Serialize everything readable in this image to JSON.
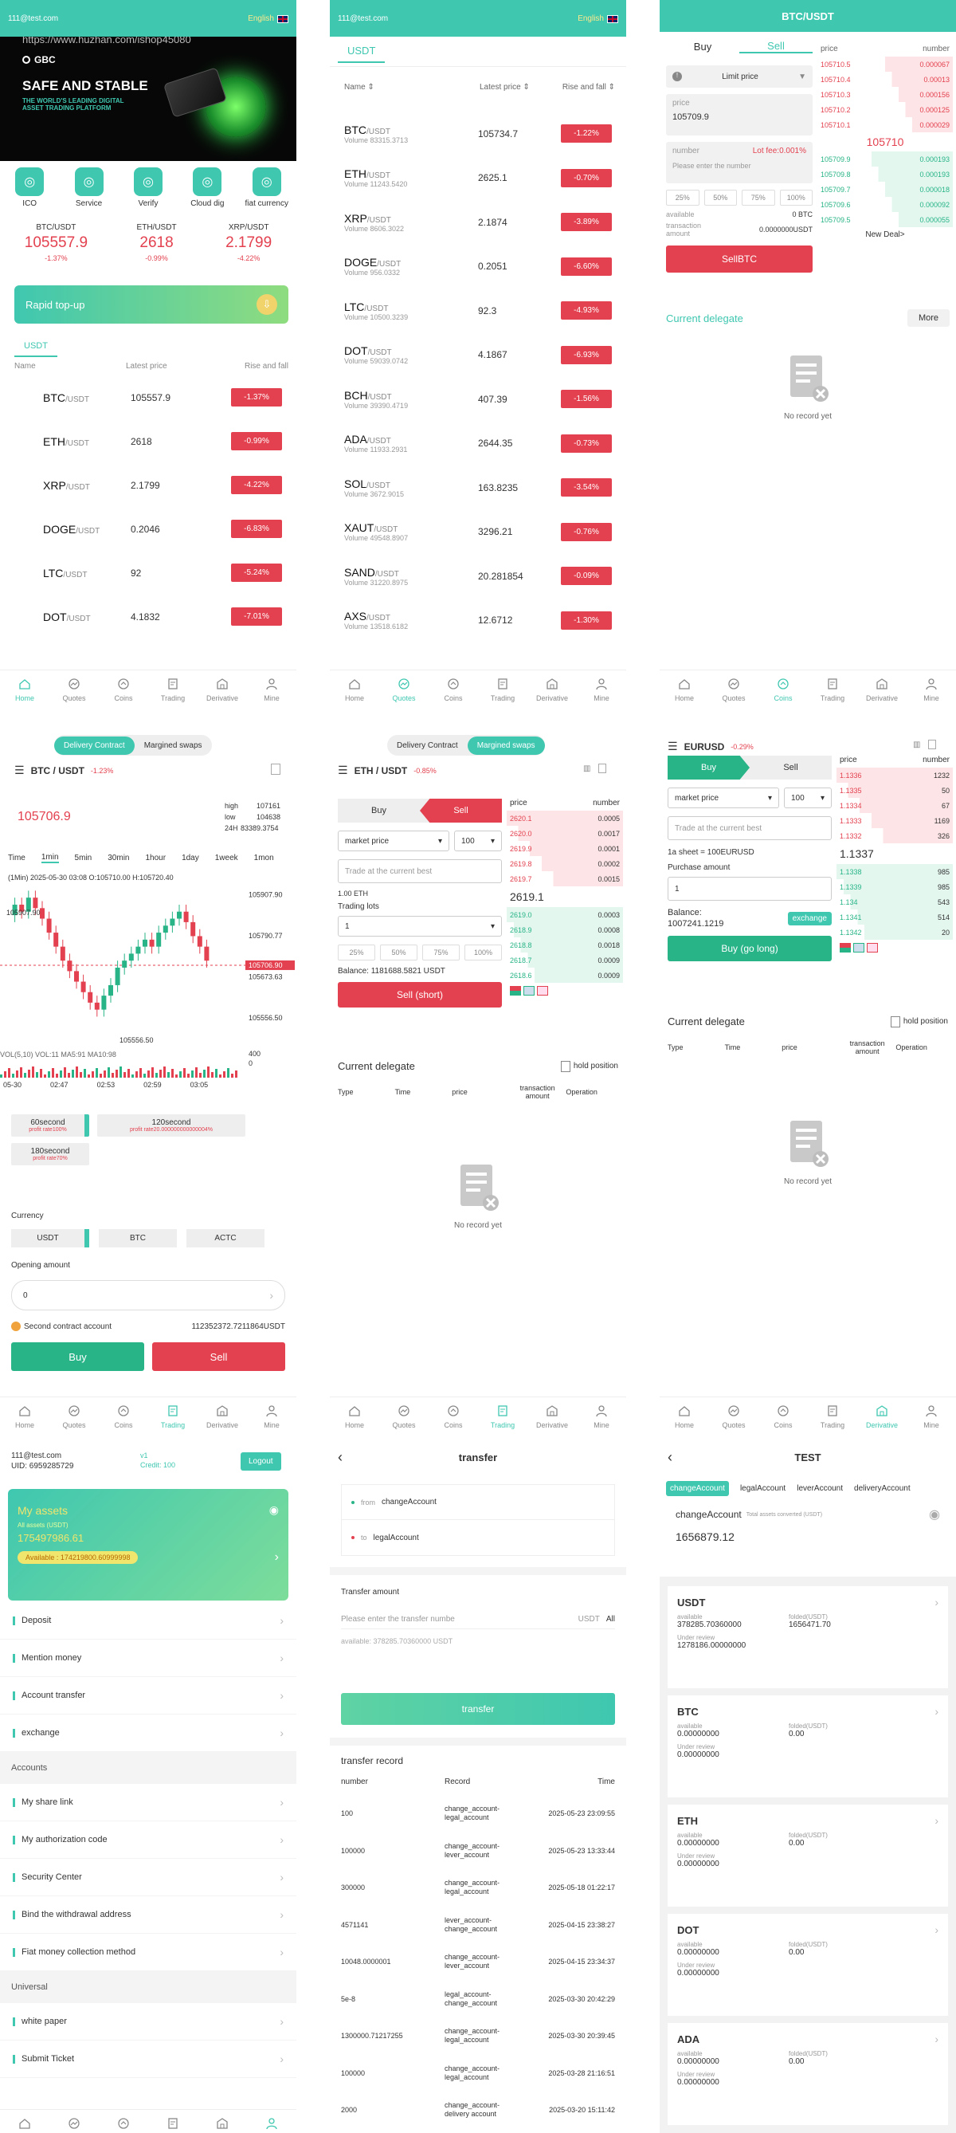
{
  "tabbar": [
    "Home",
    "Quotes",
    "Coins",
    "Trading",
    "Derivative",
    "Mine"
  ],
  "home": {
    "email": "111@test.com",
    "lang": "English",
    "banner_url": "https://www.huzhan.com/ishop45080",
    "banner_logo": "GBC",
    "banner_title": "SAFE AND STABLE",
    "banner_sub": "THE WORLD'S LEADING DIGITAL ASSET TRADING PLATFORM",
    "icons": [
      "ICO",
      "Service",
      "Verify",
      "Cloud dig",
      "fiat currency"
    ],
    "tickers": [
      {
        "pair": "BTC/USDT",
        "price": "105557.9",
        "chg": "-1.37%"
      },
      {
        "pair": "ETH/USDT",
        "price": "2618",
        "chg": "-0.99%"
      },
      {
        "pair": "XRP/USDT",
        "price": "2.1799",
        "chg": "-4.22%"
      }
    ],
    "topup": "Rapid top-up",
    "tab": "USDT",
    "cols": [
      "Name",
      "Latest price",
      "Rise and fall"
    ],
    "rows": [
      {
        "c": "BTC",
        "q": "/USDT",
        "p": "105557.9",
        "r": "-1.37%"
      },
      {
        "c": "ETH",
        "q": "/USDT",
        "p": "2618",
        "r": "-0.99%"
      },
      {
        "c": "XRP",
        "q": "/USDT",
        "p": "2.1799",
        "r": "-4.22%"
      },
      {
        "c": "DOGE",
        "q": "/USDT",
        "p": "0.2046",
        "r": "-6.83%"
      },
      {
        "c": "LTC",
        "q": "/USDT",
        "p": "92",
        "r": "-5.24%"
      },
      {
        "c": "DOT",
        "q": "/USDT",
        "p": "4.1832",
        "r": "-7.01%"
      }
    ]
  },
  "quotes": {
    "email": "111@test.com",
    "lang": "English",
    "tab": "USDT",
    "cols": [
      "Name ⇕",
      "Latest price ⇕",
      "Rise and fall ⇕"
    ],
    "rows": [
      {
        "c": "BTC",
        "q": "/USDT",
        "v": "Volume 83315.3713",
        "p": "105734.7",
        "r": "-1.22%"
      },
      {
        "c": "ETH",
        "q": "/USDT",
        "v": "Volume 11243.5420",
        "p": "2625.1",
        "r": "-0.70%"
      },
      {
        "c": "XRP",
        "q": "/USDT",
        "v": "Volume 8606.3022",
        "p": "2.1874",
        "r": "-3.89%"
      },
      {
        "c": "DOGE",
        "q": "/USDT",
        "v": "Volume 956.0332",
        "p": "0.2051",
        "r": "-6.60%"
      },
      {
        "c": "LTC",
        "q": "/USDT",
        "v": "Volume 10500.3239",
        "p": "92.3",
        "r": "-4.93%"
      },
      {
        "c": "DOT",
        "q": "/USDT",
        "v": "Volume 59039.0742",
        "p": "4.1867",
        "r": "-6.93%"
      },
      {
        "c": "BCH",
        "q": "/USDT",
        "v": "Volume 39390.4719",
        "p": "407.39",
        "r": "-1.56%"
      },
      {
        "c": "ADA",
        "q": "/USDT",
        "v": "Volume 11933.2931",
        "p": "2644.35",
        "r": "-0.73%"
      },
      {
        "c": "SOL",
        "q": "/USDT",
        "v": "Volume 3672.9015",
        "p": "163.8235",
        "r": "-3.54%"
      },
      {
        "c": "XAUT",
        "q": "/USDT",
        "v": "Volume 49548.8907",
        "p": "3296.21",
        "r": "-0.76%"
      },
      {
        "c": "SAND",
        "q": "/USDT",
        "v": "Volume 31220.8975",
        "p": "20.281854",
        "r": "-0.09%"
      },
      {
        "c": "AXS",
        "q": "/USDT",
        "v": "Volume 13518.6182",
        "p": "12.6712",
        "r": "-1.30%"
      }
    ]
  },
  "spot": {
    "title": "BTC/USDT",
    "buy": "Buy",
    "sell": "Sell",
    "order_type": "Limit price",
    "price_label": "price",
    "price_val": "105709.9",
    "number_label": "number",
    "fee": "Lot fee:0.001%",
    "number_ph": "Please enter the number",
    "pcts": [
      "25%",
      "50%",
      "75%",
      "100%"
    ],
    "available": "available",
    "available_val": "0 BTC",
    "ta": "transaction amount",
    "ta_val": "0.0000000USDT",
    "submit": "SellBTC",
    "ob_head": [
      "price",
      "number"
    ],
    "asks": [
      [
        "105710.5",
        "0.000067"
      ],
      [
        "105710.4",
        "0.00013"
      ],
      [
        "105710.3",
        "0.000156"
      ],
      [
        "105710.2",
        "0.000125"
      ],
      [
        "105710.1",
        "0.000029"
      ]
    ],
    "mid": "105710",
    "bids": [
      [
        "105709.9",
        "0.000193"
      ],
      [
        "105709.8",
        "0.000193"
      ],
      [
        "105709.7",
        "0.000018"
      ],
      [
        "105709.6",
        "0.000092"
      ],
      [
        "105709.5",
        "0.000055"
      ]
    ],
    "newdeal": "New Deal>",
    "delegate": "Current delegate",
    "more": "More",
    "empty": "No record yet"
  },
  "contract": {
    "tabs": [
      "Delivery Contract",
      "Margined swaps"
    ],
    "pair": "BTC / USDT",
    "chg": "-1.23%",
    "price": "105706.9",
    "high_l": "high",
    "high": "107161",
    "low_l": "low",
    "low": "104638",
    "h24_l": "24H",
    "h24": "83389.3754",
    "tfs": [
      "Time",
      "1min",
      "5min",
      "30min",
      "1hour",
      "1day",
      "1week",
      "1mon"
    ],
    "ohlc": "(1Min)  2025-05-30  03:08  O:105710.00  H:105720.40",
    "chart_hi": "105907.90",
    "chart_lo": "105556.50",
    "yticks": [
      "105907.90",
      "105790.77",
      "105706.90",
      "105673.63",
      "105556.50"
    ],
    "vol_line": "VOL(5,10)  VOL:11  MA5:91  MA10:98",
    "vol_ticks": [
      "400",
      "0"
    ],
    "xticks": [
      "05-30",
      "02:47",
      "02:53",
      "02:59",
      "03:05"
    ],
    "periods": [
      {
        "t": "60second",
        "s": "profit rate100%"
      },
      {
        "t": "120second",
        "s": "profit rate20.000000000000004%"
      },
      {
        "t": "180second",
        "s": "profit rate70%"
      }
    ],
    "currency": "Currency",
    "cur": [
      "USDT",
      "BTC",
      "ACTC"
    ],
    "open_amt": "Opening amount",
    "open_val": "0",
    "acct": "Second contract account",
    "acct_val": "112352372.7211864USDT",
    "buy": "Buy",
    "sell": "Sell"
  },
  "margin": {
    "tabs": [
      "Delivery Contract",
      "Margined swaps"
    ],
    "pair": "ETH / USDT",
    "chg": "-0.85%",
    "buy": "Buy",
    "sell": "Sell",
    "type": "market price",
    "lev": "100",
    "best": "Trade at the current best",
    "unit": "1.00 ETH",
    "lots": "Trading lots",
    "lots_val": "1",
    "pcts": [
      "25%",
      "50%",
      "75%",
      "100%"
    ],
    "balance": "Balance: 1181688.5821 USDT",
    "submit": "Sell (short)",
    "ob_head": [
      "price",
      "number"
    ],
    "asks": [
      [
        "2620.1",
        "0.0005"
      ],
      [
        "2620.0",
        "0.0017"
      ],
      [
        "2619.9",
        "0.0001"
      ],
      [
        "2619.8",
        "0.0002"
      ],
      [
        "2619.7",
        "0.0015"
      ]
    ],
    "mid": "2619.1",
    "bids": [
      [
        "2619.0",
        "0.0003"
      ],
      [
        "2618.9",
        "0.0008"
      ],
      [
        "2618.8",
        "0.0018"
      ],
      [
        "2618.7",
        "0.0009"
      ],
      [
        "2618.6",
        "0.0009"
      ]
    ],
    "delegate": "Current delegate",
    "hold": "hold position",
    "cols": [
      "Type",
      "Time",
      "price",
      "transaction amount",
      "Operation"
    ],
    "empty": "No record yet"
  },
  "fx": {
    "pair": "EURUSD",
    "chg": "-0.29%",
    "buy": "Buy",
    "sell": "Sell",
    "type": "market price",
    "lev": "100",
    "best": "Trade at the current best",
    "sheet": "1a sheet = 100EURUSD",
    "purchase": "Purchase amount",
    "amt": "1",
    "balance_l": "Balance:",
    "balance": "1007241.1219",
    "exchange": "exchange",
    "submit": "Buy (go long)",
    "ob_head": [
      "price",
      "number"
    ],
    "asks": [
      [
        "1.1336",
        "1232"
      ],
      [
        "1.1335",
        "50"
      ],
      [
        "1.1334",
        "67"
      ],
      [
        "1.1333",
        "1169"
      ],
      [
        "1.1332",
        "326"
      ]
    ],
    "mid": "1.1337",
    "bids": [
      [
        "1.1338",
        "985"
      ],
      [
        "1.1339",
        "985"
      ],
      [
        "1.134",
        "543"
      ],
      [
        "1.1341",
        "514"
      ],
      [
        "1.1342",
        "20"
      ]
    ],
    "delegate": "Current delegate",
    "hold": "hold position",
    "cols": [
      "Type",
      "Time",
      "price",
      "transaction amount",
      "Operation"
    ],
    "empty": "No record yet"
  },
  "mine": {
    "email": "111@test.com",
    "uid": "UID: 6959285729",
    "vip": "v1",
    "credit": "Credit: 100",
    "logout": "Logout",
    "assets": "My assets",
    "assets_sub": "All assets (USDT)",
    "assets_val": "175497986.61",
    "available": "Available : 174219800.60999998",
    "items1": [
      "Deposit",
      "Mention money",
      "Account transfer",
      "exchange"
    ],
    "sec1": "Accounts",
    "items2": [
      "My share link",
      "My authorization code",
      "Security Center",
      "Bind the withdrawal address",
      "Fiat money collection method"
    ],
    "sec2": "Universal",
    "items3": [
      "white paper",
      "Submit Ticket"
    ]
  },
  "transfer": {
    "title": "transfer",
    "from_l": "from",
    "from": "changeAccount",
    "to_l": "to",
    "to": "legalAccount",
    "amt_l": "Transfer amount",
    "amt_ph": "Please enter the transfer numbe",
    "unit": "USDT",
    "all": "All",
    "avail": "available: 378285.70360000 USDT",
    "btn": "transfer",
    "rec": "transfer record",
    "cols": [
      "number",
      "Record",
      "Time"
    ],
    "rows": [
      [
        "100",
        "change_account-legal_account",
        "2025-05-23 23:09:55"
      ],
      [
        "100000",
        "change_account-lever_account",
        "2025-05-23 13:33:44"
      ],
      [
        "300000",
        "change_account-legal_account",
        "2025-05-18 01:22:17"
      ],
      [
        "4571141",
        "lever_account-change_account",
        "2025-04-15 23:38:27"
      ],
      [
        "10048.0000001",
        "change_account-lever_account",
        "2025-04-15 23:34:37"
      ],
      [
        "5e-8",
        "legal_account-change_account",
        "2025-03-30 20:42:29"
      ],
      [
        "1300000.71217255",
        "change_account-legal_account",
        "2025-03-30 20:39:45"
      ],
      [
        "100000",
        "change_account-legal_account",
        "2025-03-28 21:16:51"
      ],
      [
        "2000",
        "change_account-delivery account",
        "2025-03-20 15:11:42"
      ]
    ]
  },
  "test": {
    "title": "TEST",
    "tabs": [
      "changeAccount",
      "legalAccount",
      "leverAccount",
      "deliveryAccount"
    ],
    "acct": "changeAccount",
    "conv": "Total assets converted (USDT)",
    "total": "1656879.12",
    "cards": [
      {
        "c": "USDT",
        "a": "378285.70360000",
        "f": "1656471.70",
        "u": "1278186.00000000"
      },
      {
        "c": "BTC",
        "a": "0.00000000",
        "f": "0.00",
        "u": "0.00000000"
      },
      {
        "c": "ETH",
        "a": "0.00000000",
        "f": "0.00",
        "u": "0.00000000"
      },
      {
        "c": "DOT",
        "a": "0.00000000",
        "f": "0.00",
        "u": "0.00000000"
      },
      {
        "c": "ADA",
        "a": "0.00000000",
        "f": "0.00",
        "u": "0.00000000"
      }
    ],
    "avail_l": "available",
    "fold_l": "folded(USDT)",
    "under_l": "Under review"
  },
  "colors": {
    "accent": "#3fc7b0",
    "red": "#e3414f",
    "green": "#28b487"
  }
}
